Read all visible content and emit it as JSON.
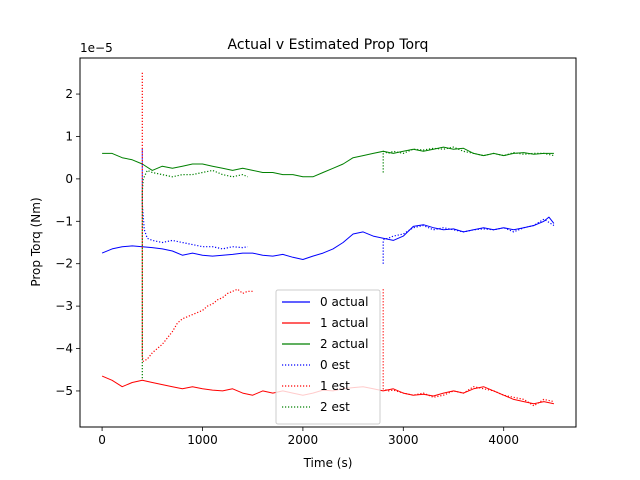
{
  "chart_data": {
    "type": "line",
    "title": "Actual v Estimated Prop Torq",
    "xlabel": "Time (s)",
    "ylabel": "Prop Torq (Nm)",
    "y_scale_label": "1e−5",
    "xlim": [
      -220,
      4720
    ],
    "ylim": [
      -5.85,
      2.85
    ],
    "xticks": [
      0,
      1000,
      2000,
      3000,
      4000
    ],
    "xtick_labels": [
      "0",
      "1000",
      "2000",
      "3000",
      "4000"
    ],
    "yticks": [
      -5,
      -4,
      -3,
      -2,
      -1,
      0,
      1,
      2
    ],
    "ytick_labels": [
      "−5",
      "−4",
      "−3",
      "−2",
      "−1",
      "0",
      "1",
      "2"
    ],
    "grid": false,
    "legend_position": "lower center",
    "series": [
      {
        "name": "0 actual",
        "color": "#0000ff",
        "style": "solid",
        "x": [
          0,
          100,
          200,
          300,
          400,
          500,
          600,
          700,
          800,
          900,
          1000,
          1100,
          1200,
          1300,
          1400,
          1500,
          1600,
          1700,
          1800,
          1900,
          2000,
          2100,
          2200,
          2300,
          2400,
          2500,
          2600,
          2700,
          2800,
          2900,
          3000,
          3100,
          3200,
          3300,
          3400,
          3500,
          3600,
          3700,
          3800,
          3900,
          4000,
          4100,
          4200,
          4300,
          4400,
          4450,
          4500
        ],
        "values": [
          -1.75,
          -1.65,
          -1.6,
          -1.58,
          -1.6,
          -1.62,
          -1.65,
          -1.7,
          -1.8,
          -1.75,
          -1.8,
          -1.82,
          -1.8,
          -1.78,
          -1.75,
          -1.75,
          -1.8,
          -1.82,
          -1.78,
          -1.85,
          -1.9,
          -1.82,
          -1.75,
          -1.65,
          -1.5,
          -1.3,
          -1.25,
          -1.35,
          -1.4,
          -1.45,
          -1.35,
          -1.12,
          -1.08,
          -1.15,
          -1.2,
          -1.18,
          -1.25,
          -1.2,
          -1.15,
          -1.2,
          -1.15,
          -1.2,
          -1.15,
          -1.1,
          -1.0,
          -0.9,
          -1.05
        ]
      },
      {
        "name": "1 actual",
        "color": "#ff0000",
        "style": "solid",
        "x": [
          0,
          100,
          200,
          300,
          400,
          500,
          600,
          700,
          800,
          900,
          1000,
          1100,
          1200,
          1300,
          1400,
          1500,
          1600,
          1700,
          1800,
          1900,
          2000,
          2100,
          2200,
          2300,
          2400,
          2500,
          2600,
          2700,
          2800,
          2900,
          3000,
          3100,
          3200,
          3300,
          3400,
          3500,
          3600,
          3700,
          3800,
          3900,
          4000,
          4100,
          4200,
          4300,
          4400,
          4500
        ],
        "values": [
          -4.65,
          -4.75,
          -4.9,
          -4.8,
          -4.75,
          -4.8,
          -4.85,
          -4.9,
          -4.95,
          -4.9,
          -4.95,
          -4.98,
          -5.0,
          -4.95,
          -5.05,
          -5.1,
          -5.0,
          -5.05,
          -5.0,
          -5.05,
          -5.1,
          -5.05,
          -4.98,
          -5.0,
          -4.95,
          -4.92,
          -4.9,
          -4.95,
          -5.0,
          -4.95,
          -5.05,
          -5.1,
          -5.08,
          -5.12,
          -5.05,
          -5.0,
          -5.05,
          -4.95,
          -4.9,
          -5.0,
          -5.1,
          -5.2,
          -5.25,
          -5.3,
          -5.25,
          -5.3
        ]
      },
      {
        "name": "2 actual",
        "color": "#008000",
        "style": "solid",
        "x": [
          0,
          100,
          200,
          300,
          400,
          500,
          600,
          700,
          800,
          900,
          1000,
          1100,
          1200,
          1300,
          1400,
          1500,
          1600,
          1700,
          1800,
          1900,
          2000,
          2100,
          2200,
          2300,
          2400,
          2500,
          2600,
          2700,
          2800,
          2900,
          3000,
          3100,
          3200,
          3300,
          3400,
          3500,
          3600,
          3700,
          3800,
          3900,
          4000,
          4100,
          4200,
          4300,
          4400,
          4500
        ],
        "values": [
          0.6,
          0.6,
          0.5,
          0.45,
          0.35,
          0.2,
          0.3,
          0.25,
          0.3,
          0.35,
          0.35,
          0.3,
          0.25,
          0.2,
          0.25,
          0.2,
          0.15,
          0.15,
          0.1,
          0.1,
          0.05,
          0.05,
          0.15,
          0.25,
          0.35,
          0.5,
          0.55,
          0.6,
          0.65,
          0.6,
          0.65,
          0.7,
          0.65,
          0.7,
          0.75,
          0.7,
          0.72,
          0.6,
          0.55,
          0.6,
          0.55,
          0.6,
          0.62,
          0.58,
          0.6,
          0.6
        ]
      },
      {
        "name": "0 est",
        "color": "#0000ff",
        "style": "dotted",
        "segments": [
          {
            "x": [
              400,
              400,
              410,
              420,
              450,
              500,
              600,
              700,
              800,
              900,
              1000,
              1100,
              1200,
              1300,
              1400,
              1450
            ],
            "values": [
              0.7,
              -0.6,
              -0.9,
              -1.2,
              -1.4,
              -1.45,
              -1.5,
              -1.45,
              -1.5,
              -1.55,
              -1.6,
              -1.6,
              -1.65,
              -1.6,
              -1.62,
              -1.6
            ]
          },
          {
            "x": [
              2800,
              2800,
              2810,
              2850,
              2900,
              3000,
              3100,
              3200,
              3300,
              3400,
              3500,
              3600,
              3700,
              3800,
              3900,
              4000,
              4100,
              4200,
              4300,
              4400,
              4500
            ],
            "values": [
              -2.0,
              -1.45,
              -1.42,
              -1.4,
              -1.35,
              -1.3,
              -1.15,
              -1.1,
              -1.2,
              -1.15,
              -1.2,
              -1.25,
              -1.2,
              -1.18,
              -1.2,
              -1.15,
              -1.25,
              -1.15,
              -1.1,
              -0.95,
              -1.1
            ]
          }
        ]
      },
      {
        "name": "1 est",
        "color": "#ff0000",
        "style": "dotted",
        "segments": [
          {
            "x": [
              400,
              400,
              410,
              450,
              500,
              550,
              600,
              650,
              700,
              750,
              800,
              850,
              900,
              950,
              1000,
              1050,
              1100,
              1150,
              1200,
              1250,
              1300,
              1350,
              1400,
              1450,
              1500
            ],
            "values": [
              2.5,
              -4.2,
              -4.3,
              -4.25,
              -4.1,
              -4.0,
              -3.9,
              -3.75,
              -3.6,
              -3.4,
              -3.3,
              -3.25,
              -3.2,
              -3.15,
              -3.1,
              -3.0,
              -2.95,
              -2.85,
              -2.8,
              -2.7,
              -2.65,
              -2.6,
              -2.7,
              -2.65,
              -2.65
            ]
          },
          {
            "x": [
              2800,
              2800,
              2850,
              2900,
              3000,
              3100,
              3200,
              3300,
              3400,
              3500,
              3600,
              3700,
              3800,
              3900,
              4000,
              4100,
              4200,
              4300,
              4400,
              4500
            ],
            "values": [
              -2.6,
              -4.95,
              -5.0,
              -4.98,
              -5.05,
              -5.1,
              -5.05,
              -5.15,
              -5.1,
              -5.0,
              -5.05,
              -4.9,
              -4.95,
              -5.0,
              -5.1,
              -5.15,
              -5.2,
              -5.35,
              -5.2,
              -5.25
            ]
          }
        ]
      },
      {
        "name": "2 est",
        "color": "#008000",
        "style": "dotted",
        "segments": [
          {
            "x": [
              400,
              400,
              410,
              450,
              500,
              600,
              700,
              800,
              900,
              1000,
              1100,
              1200,
              1300,
              1400,
              1450
            ],
            "values": [
              -4.7,
              -0.3,
              0.0,
              0.2,
              0.15,
              0.1,
              0.05,
              0.1,
              0.1,
              0.15,
              0.2,
              0.1,
              0.05,
              0.1,
              0.05
            ]
          },
          {
            "x": [
              2800,
              2800,
              2850,
              2900,
              3000,
              3100,
              3200,
              3300,
              3400,
              3500,
              3600,
              3700,
              3800,
              3900,
              4000,
              4100,
              4200,
              4300,
              4400,
              4500
            ],
            "values": [
              0.15,
              0.65,
              0.6,
              0.65,
              0.6,
              0.7,
              0.68,
              0.72,
              0.7,
              0.75,
              0.65,
              0.6,
              0.55,
              0.6,
              0.55,
              0.62,
              0.58,
              0.6,
              0.6,
              0.55
            ]
          }
        ]
      }
    ]
  }
}
